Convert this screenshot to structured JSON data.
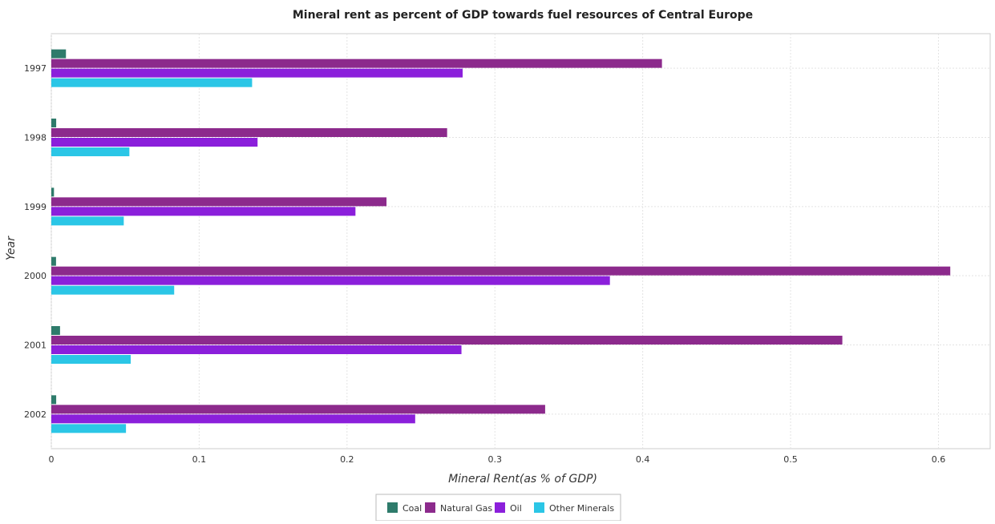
{
  "chart_data": {
    "type": "bar",
    "orientation": "horizontal",
    "title": "Mineral rent as percent of GDP towards fuel resources of Central Europe",
    "xlabel": "Mineral Rent(as % of GDP)",
    "ylabel": "Year",
    "xlim": [
      0,
      0.635
    ],
    "xticks": [
      "0",
      "0.1",
      "0.2",
      "0.3",
      "0.4",
      "0.5",
      "0.6"
    ],
    "grid": true,
    "legend_position": "bottom-center",
    "categories": [
      "1997",
      "1998",
      "1999",
      "2000",
      "2001",
      "2002"
    ],
    "series": [
      {
        "name": "Coal",
        "color": "#2e7b6b",
        "values": [
          0.0099,
          0.0033,
          0.0018,
          0.0032,
          0.0059,
          0.0033
        ]
      },
      {
        "name": "Natural Gas",
        "color": "#8c2a8c",
        "values": [
          0.413,
          0.2677,
          0.2267,
          0.608,
          0.535,
          0.334
        ]
      },
      {
        "name": "Oil",
        "color": "#8b1fdb",
        "values": [
          0.2782,
          0.1395,
          0.2057,
          0.3778,
          0.2774,
          0.2461
        ]
      },
      {
        "name": "Other Minerals",
        "color": "#2bc6e6",
        "values": [
          0.1358,
          0.0528,
          0.049,
          0.0831,
          0.0537,
          0.0505
        ]
      }
    ]
  }
}
